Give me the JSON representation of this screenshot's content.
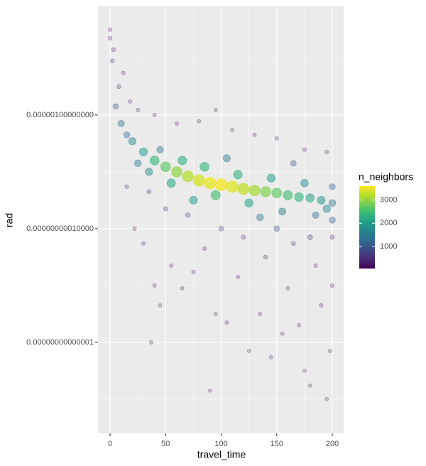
{
  "chart_data": {
    "type": "scatter",
    "x_label": "travel_time",
    "y_label": "rad",
    "legend_title": "n_neighbors",
    "xlim": [
      -10.9,
      210.2
    ],
    "ylim": [
      6.3e-18,
      0.007
    ],
    "log_y": true,
    "grid": true,
    "xticks": [
      0,
      50,
      100,
      150,
      200
    ],
    "x_minor_ticks": [
      25,
      75,
      125,
      175
    ],
    "yticks": [
      {
        "value": 1e-06,
        "label": "0.00000100000000"
      },
      {
        "value": 1e-10,
        "label": "0.00000000010000"
      },
      {
        "value": 1e-14,
        "label": "0.00000000000001"
      }
    ],
    "y_minor_ticks": [
      0.0001,
      1e-08,
      1e-12,
      1e-16
    ],
    "color_lim": [
      50,
      3600
    ],
    "color_ticks": [
      1000,
      2000,
      3000
    ],
    "colormap": "viridis",
    "x": [
      90,
      100,
      80,
      110,
      120,
      70,
      60,
      130,
      140,
      150,
      50,
      40,
      160,
      170,
      180,
      190,
      30,
      20,
      10,
      200,
      85,
      95,
      65,
      115,
      125,
      145,
      55,
      175,
      195,
      35,
      25,
      45,
      105,
      155,
      185,
      75,
      135,
      15,
      5,
      200,
      165,
      200,
      0,
      0,
      2,
      3,
      8,
      12,
      18,
      25,
      40,
      60,
      80,
      95,
      110,
      130,
      150,
      175,
      195,
      15,
      22,
      30,
      40,
      45,
      55,
      65,
      75,
      85,
      95,
      105,
      115,
      125,
      135,
      145,
      155,
      160,
      170,
      175,
      180,
      185,
      190,
      195,
      198,
      200,
      200,
      165,
      140,
      120,
      100,
      70,
      50,
      35,
      150,
      180,
      90,
      37
    ],
    "values": [
      4e-09,
      3.5e-09,
      5e-09,
      3e-09,
      2.5e-09,
      7e-09,
      1e-08,
      2.2e-09,
      2e-09,
      1.8e-09,
      1.5e-08,
      2.5e-08,
      1.5e-09,
      1.3e-09,
      1.2e-09,
      1e-09,
      5e-08,
      1.2e-07,
      5e-07,
      8e-10,
      1.5e-08,
      1.5e-09,
      2.5e-08,
      8e-09,
      8e-10,
      6e-09,
      4e-09,
      4e-09,
      5e-10,
      1e-08,
      2e-08,
      6e-08,
      3e-08,
      4e-10,
      3e-10,
      1e-09,
      2.5e-10,
      2e-07,
      2e-06,
      2e-10,
      2e-08,
      3e-09,
      0.001,
      0.0005,
      8e-05,
      0.0002,
      1e-05,
      3e-05,
      3e-06,
      1.5e-06,
      1e-06,
      5e-07,
      6e-07,
      1.5e-06,
      3e-07,
      2e-07,
      1.5e-07,
      6e-08,
      5e-08,
      3e-09,
      1e-10,
      3e-11,
      1e-12,
      2e-13,
      5e-12,
      8e-13,
      3e-12,
      2e-11,
      1e-13,
      5e-14,
      2e-12,
      5e-15,
      1e-13,
      3e-15,
      2e-14,
      8e-13,
      4e-14,
      1e-15,
      3e-16,
      5e-12,
      2e-13,
      1e-16,
      5e-15,
      1e-12,
      5e-11,
      3e-11,
      1e-11,
      5e-11,
      1e-10,
      3e-10,
      5e-10,
      2e-09,
      1e-10,
      5e-11,
      2e-16,
      1e-14
    ],
    "color_values": [
      3500,
      3550,
      3400,
      3450,
      3300,
      3200,
      3000,
      3100,
      2900,
      2700,
      2700,
      2400,
      2500,
      2300,
      2100,
      1900,
      2000,
      1700,
      1300,
      1500,
      2400,
      2500,
      2200,
      2300,
      2100,
      2000,
      2200,
      1800,
      1700,
      1700,
      1500,
      1400,
      1600,
      1600,
      1400,
      1900,
      1500,
      1200,
      900,
      1200,
      1000,
      1100,
      150,
      200,
      300,
      250,
      400,
      150,
      200,
      150,
      120,
      110,
      100,
      100,
      120,
      110,
      120,
      150,
      180,
      200,
      150,
      120,
      100,
      100,
      130,
      110,
      140,
      160,
      100,
      90,
      120,
      80,
      100,
      80,
      100,
      150,
      120,
      70,
      60,
      200,
      150,
      60,
      90,
      220,
      400,
      350,
      300,
      400,
      600,
      500,
      400,
      400,
      900,
      700,
      50,
      70
    ]
  }
}
